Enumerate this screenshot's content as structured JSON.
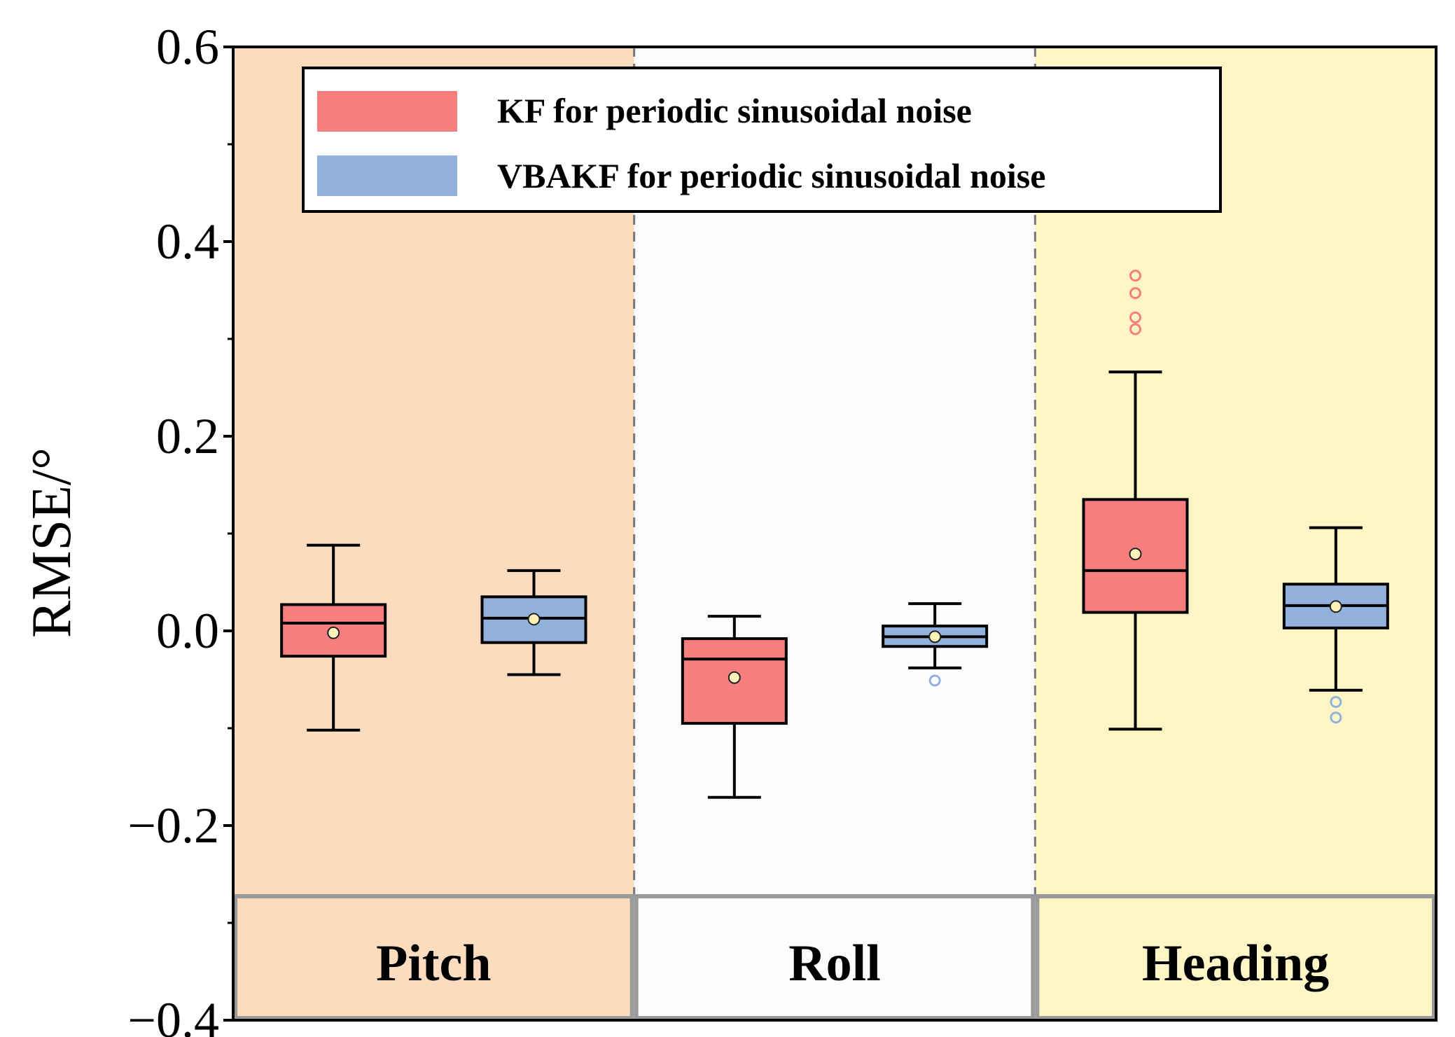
{
  "chart_data": {
    "type": "box",
    "ylabel": "RMSE/°",
    "xlabel": "",
    "ylim": [
      -0.4,
      0.6
    ],
    "yticks": [
      -0.4,
      -0.2,
      0.0,
      0.2,
      0.4,
      0.6
    ],
    "ytick_labels": [
      "−0.4",
      "−0.2",
      "0.0",
      "0.2",
      "0.4",
      "0.6"
    ],
    "categories": [
      "Pitch",
      "Roll",
      "Heading"
    ],
    "category_colors": [
      "#fcdcbf",
      "#fcfcfc",
      "#fdf5c6"
    ],
    "legend": {
      "position": "top",
      "entries": [
        {
          "label": "KF for periodic sinusoidal noise",
          "color": "#f77e7e"
        },
        {
          "label": "VBAKF for periodic sinusoidal noise",
          "color": "#92b2dd"
        }
      ]
    },
    "series": [
      {
        "name": "KF for periodic sinusoidal noise",
        "color": "#f77e7e",
        "boxes": [
          {
            "category": "Pitch",
            "whisker_low": -0.102,
            "q1": -0.026,
            "median": 0.008,
            "q3": 0.027,
            "whisker_high": 0.088,
            "mean": -0.002,
            "outliers": []
          },
          {
            "category": "Roll",
            "whisker_low": -0.171,
            "q1": -0.095,
            "median": -0.029,
            "q3": -0.008,
            "whisker_high": 0.015,
            "mean": -0.048,
            "outliers": []
          },
          {
            "category": "Heading",
            "whisker_low": -0.101,
            "q1": 0.019,
            "median": 0.062,
            "q3": 0.135,
            "whisker_high": 0.266,
            "mean": 0.079,
            "outliers": [
              0.31,
              0.322,
              0.347,
              0.365
            ]
          }
        ]
      },
      {
        "name": "VBAKF for periodic sinusoidal noise",
        "color": "#92b2dd",
        "boxes": [
          {
            "category": "Pitch",
            "whisker_low": -0.045,
            "q1": -0.012,
            "median": 0.013,
            "q3": 0.035,
            "whisker_high": 0.062,
            "mean": 0.012,
            "outliers": []
          },
          {
            "category": "Roll",
            "whisker_low": -0.038,
            "q1": -0.016,
            "median": -0.006,
            "q3": 0.005,
            "whisker_high": 0.028,
            "mean": -0.006,
            "outliers": [
              -0.051
            ]
          },
          {
            "category": "Heading",
            "whisker_low": -0.061,
            "q1": 0.003,
            "median": 0.026,
            "q3": 0.048,
            "whisker_high": 0.106,
            "mean": 0.025,
            "outliers": [
              -0.073,
              -0.089
            ]
          }
        ]
      }
    ]
  }
}
